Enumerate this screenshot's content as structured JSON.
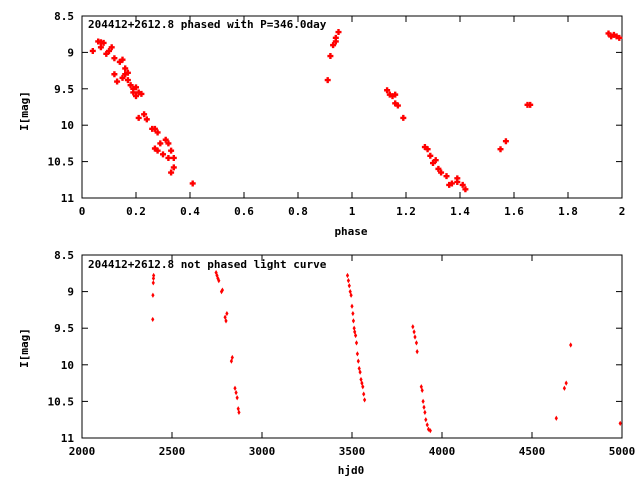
{
  "chart_data": [
    {
      "type": "scatter",
      "title": "204412+2612.8 phased with P=346.0day",
      "xlabel": "phase",
      "ylabel": "I[mag]",
      "xlim": [
        0,
        2
      ],
      "ylim": [
        8.5,
        11
      ],
      "y_inverted": true,
      "x_ticks": [
        "0",
        "0.2",
        "0.4",
        "0.6",
        "0.8",
        "1",
        "1.2",
        "1.4",
        "1.6",
        "1.8",
        "2"
      ],
      "y_ticks": [
        "8.5",
        "9",
        "9.5",
        "10",
        "10.5",
        "11"
      ],
      "marker_color": "#ff0000",
      "points": [
        [
          0.04,
          8.98
        ],
        [
          0.06,
          8.85
        ],
        [
          0.07,
          8.86
        ],
        [
          0.07,
          8.93
        ],
        [
          0.08,
          8.87
        ],
        [
          0.09,
          9.02
        ],
        [
          0.1,
          8.98
        ],
        [
          0.11,
          8.93
        ],
        [
          0.12,
          9.08
        ],
        [
          0.12,
          9.3
        ],
        [
          0.13,
          9.4
        ],
        [
          0.14,
          9.13
        ],
        [
          0.15,
          9.1
        ],
        [
          0.15,
          9.35
        ],
        [
          0.16,
          9.22
        ],
        [
          0.16,
          9.3
        ],
        [
          0.17,
          9.28
        ],
        [
          0.17,
          9.38
        ],
        [
          0.18,
          9.45
        ],
        [
          0.19,
          9.5
        ],
        [
          0.19,
          9.55
        ],
        [
          0.2,
          9.48
        ],
        [
          0.2,
          9.6
        ],
        [
          0.21,
          9.55
        ],
        [
          0.21,
          9.9
        ],
        [
          0.22,
          9.57
        ],
        [
          0.23,
          9.85
        ],
        [
          0.24,
          9.92
        ],
        [
          0.26,
          10.05
        ],
        [
          0.27,
          10.05
        ],
        [
          0.27,
          10.32
        ],
        [
          0.28,
          10.1
        ],
        [
          0.28,
          10.35
        ],
        [
          0.29,
          10.25
        ],
        [
          0.3,
          10.4
        ],
        [
          0.31,
          10.2
        ],
        [
          0.32,
          10.25
        ],
        [
          0.32,
          10.45
        ],
        [
          0.33,
          10.35
        ],
        [
          0.33,
          10.65
        ],
        [
          0.34,
          10.45
        ],
        [
          0.34,
          10.58
        ],
        [
          0.41,
          10.8
        ],
        [
          0.91,
          9.38
        ],
        [
          0.92,
          9.05
        ],
        [
          0.93,
          8.9
        ],
        [
          0.94,
          8.8
        ],
        [
          0.94,
          8.85
        ],
        [
          0.95,
          8.72
        ],
        [
          1.13,
          9.52
        ],
        [
          1.14,
          9.58
        ],
        [
          1.15,
          9.6
        ],
        [
          1.16,
          9.58
        ],
        [
          1.16,
          9.7
        ],
        [
          1.17,
          9.73
        ],
        [
          1.19,
          9.9
        ],
        [
          1.27,
          10.3
        ],
        [
          1.28,
          10.33
        ],
        [
          1.29,
          10.42
        ],
        [
          1.3,
          10.52
        ],
        [
          1.31,
          10.48
        ],
        [
          1.32,
          10.6
        ],
        [
          1.33,
          10.65
        ],
        [
          1.35,
          10.7
        ],
        [
          1.36,
          10.82
        ],
        [
          1.37,
          10.8
        ],
        [
          1.39,
          10.73
        ],
        [
          1.39,
          10.78
        ],
        [
          1.41,
          10.82
        ],
        [
          1.42,
          10.88
        ],
        [
          1.55,
          10.33
        ],
        [
          1.57,
          10.22
        ],
        [
          1.65,
          9.72
        ],
        [
          1.66,
          9.72
        ],
        [
          1.95,
          8.74
        ],
        [
          1.96,
          8.78
        ],
        [
          1.97,
          8.76
        ],
        [
          1.98,
          8.78
        ],
        [
          1.99,
          8.8
        ]
      ]
    },
    {
      "type": "scatter",
      "title": "204412+2612.8 not phased light curve",
      "xlabel": "hjd0",
      "ylabel": "I[mag]",
      "xlim": [
        2000,
        5000
      ],
      "ylim": [
        8.5,
        11
      ],
      "y_inverted": true,
      "x_ticks": [
        "2000",
        "2500",
        "3000",
        "3500",
        "4000",
        "4500",
        "5000"
      ],
      "y_ticks": [
        "8.5",
        "9",
        "9.5",
        "10",
        "10.5",
        "11"
      ],
      "marker_color": "#ff0000",
      "points": [
        [
          2393,
          9.38
        ],
        [
          2394,
          9.05
        ],
        [
          2396,
          8.88
        ],
        [
          2397,
          8.82
        ],
        [
          2398,
          8.78
        ],
        [
          2745,
          8.74
        ],
        [
          2750,
          8.78
        ],
        [
          2755,
          8.82
        ],
        [
          2760,
          8.85
        ],
        [
          2775,
          9.0
        ],
        [
          2780,
          8.98
        ],
        [
          2795,
          9.35
        ],
        [
          2800,
          9.4
        ],
        [
          2805,
          9.3
        ],
        [
          2830,
          9.95
        ],
        [
          2835,
          9.9
        ],
        [
          2850,
          10.32
        ],
        [
          2856,
          10.38
        ],
        [
          2862,
          10.45
        ],
        [
          2868,
          10.6
        ],
        [
          2872,
          10.65
        ],
        [
          3475,
          8.78
        ],
        [
          3480,
          8.85
        ],
        [
          3485,
          8.92
        ],
        [
          3490,
          9.0
        ],
        [
          3495,
          9.05
        ],
        [
          3500,
          9.2
        ],
        [
          3505,
          9.3
        ],
        [
          3508,
          9.4
        ],
        [
          3512,
          9.5
        ],
        [
          3515,
          9.55
        ],
        [
          3520,
          9.6
        ],
        [
          3525,
          9.7
        ],
        [
          3530,
          9.85
        ],
        [
          3535,
          9.95
        ],
        [
          3540,
          10.05
        ],
        [
          3545,
          10.1
        ],
        [
          3550,
          10.2
        ],
        [
          3555,
          10.25
        ],
        [
          3560,
          10.3
        ],
        [
          3565,
          10.4
        ],
        [
          3570,
          10.48
        ],
        [
          3838,
          9.48
        ],
        [
          3845,
          9.55
        ],
        [
          3850,
          9.62
        ],
        [
          3858,
          9.7
        ],
        [
          3862,
          9.82
        ],
        [
          3885,
          10.3
        ],
        [
          3890,
          10.35
        ],
        [
          3895,
          10.5
        ],
        [
          3900,
          10.58
        ],
        [
          3905,
          10.65
        ],
        [
          3910,
          10.75
        ],
        [
          3918,
          10.82
        ],
        [
          3925,
          10.88
        ],
        [
          3935,
          10.9
        ],
        [
          4635,
          10.73
        ],
        [
          4680,
          10.32
        ],
        [
          4690,
          10.25
        ],
        [
          4715,
          9.73
        ],
        [
          4990,
          10.8
        ]
      ]
    }
  ]
}
